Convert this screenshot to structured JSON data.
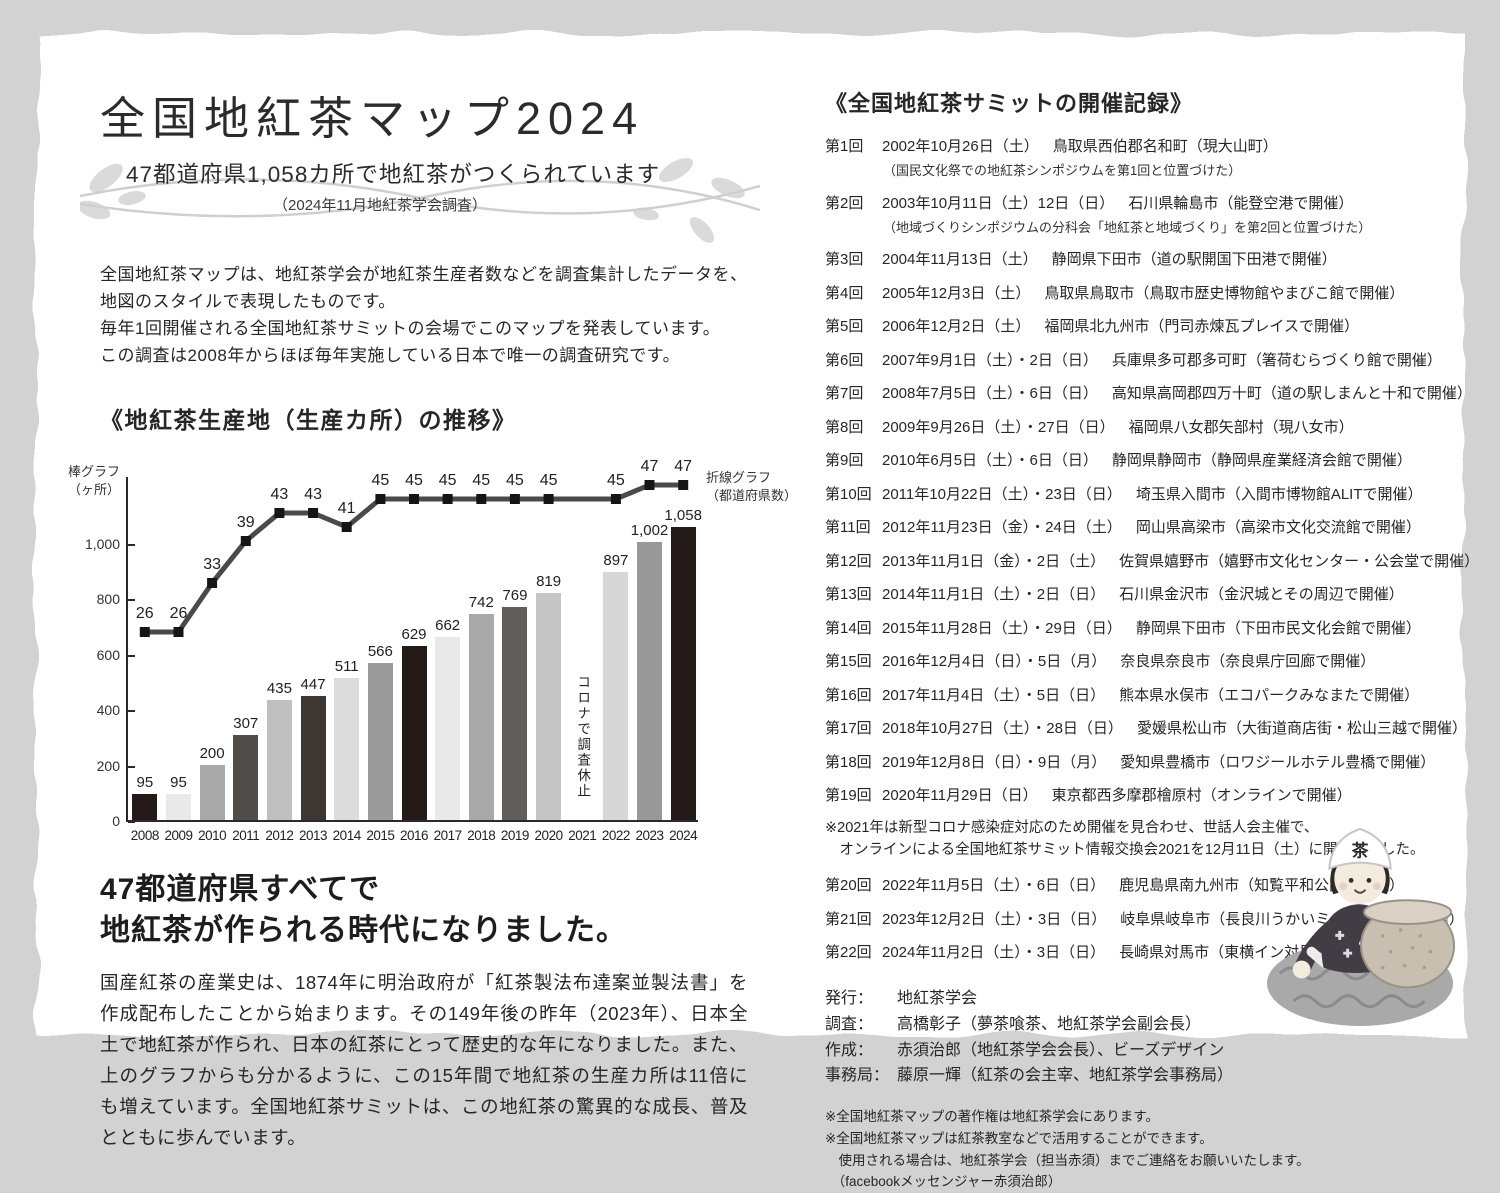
{
  "page": {
    "title": "全国地紅茶マップ2024",
    "subtitle": "47都道府県1,058カ所で地紅茶がつくられています",
    "survey_note": "（2024年11月地紅茶学会調査）",
    "intro_lines": [
      "全国地紅茶マップは、地紅茶学会が地紅茶生産者数などを調査集計したデータを、",
      "地図のスタイルで表現したものです。",
      "毎年1回開催される全国地紅茶サミットの会場でこのマップを発表しています。",
      "この調査は2008年からほぼ毎年実施している日本で唯一の調査研究です。"
    ]
  },
  "chart_data": {
    "type": "bar+line",
    "title": "《地紅茶生産地（生産カ所）の推移》",
    "bar_axis_label_lines": [
      "棒グラフ",
      "（ヶ所）"
    ],
    "line_legend_lines": [
      "折線グラフ",
      "（都道府県数）"
    ],
    "categories": [
      "2008",
      "2009",
      "2010",
      "2011",
      "2012",
      "2013",
      "2014",
      "2015",
      "2016",
      "2017",
      "2018",
      "2019",
      "2020",
      "2021",
      "2022",
      "2023",
      "2024"
    ],
    "series": [
      {
        "name": "生産カ所(棒グラフ)",
        "type": "bar",
        "values": [
          95,
          95,
          200,
          307,
          435,
          447,
          511,
          566,
          629,
          662,
          742,
          769,
          819,
          null,
          897,
          1002,
          1058
        ]
      },
      {
        "name": "都道府県数(折線グラフ)",
        "type": "line",
        "values": [
          26,
          26,
          33,
          39,
          43,
          43,
          41,
          45,
          45,
          45,
          45,
          45,
          45,
          null,
          45,
          47,
          47
        ]
      }
    ],
    "bar_colors": [
      "#241b18",
      "#e9e9e9",
      "#a9a9a9",
      "#514d4b",
      "#bfbfbf",
      "#3d3734",
      "#dcdcdc",
      "#9b9b9b",
      "#241b18",
      "#e9e9e9",
      "#a9a9a9",
      "#615d5b",
      "#c5c5c5",
      null,
      "#d7d7d7",
      "#989898",
      "#241b18"
    ],
    "missing_label": "コロナで調査休止",
    "y_ticks": [
      0,
      200,
      400,
      600,
      800,
      1000
    ],
    "bar_ylim": [
      0,
      1100
    ],
    "line_ylim": [
      0,
      48
    ],
    "grid": false,
    "legend_position": "top-right",
    "line_color": "#4a4a4a",
    "marker_color": "#151515"
  },
  "highlight": {
    "line1": "47都道府県すべてで",
    "line2": "地紅茶が作られる時代になりました。"
  },
  "history_paragraph": "国産紅茶の産業史は、1874年に明治政府が「紅茶製法布達案並製法書」を作成配布したことから始まります。その149年後の昨年（2023年）、日本全土で地紅茶が作られ、日本の紅茶にとって歴史的な年になりました。また、上のグラフからも分かるように、この15年間で地紅茶の生産カ所は11倍にも増えています。全国地紅茶サミットは、この地紅茶の驚異的な成長、普及とともに歩んでいます。",
  "summit": {
    "title": "《全国地紅茶サミットの開催記録》",
    "entries": [
      {
        "no": "第1回",
        "date": "2002年10月26日（土）",
        "location": "鳥取県西伯郡名和町（現大山町）",
        "note": "（国民文化祭での地紅茶シンポジウムを第1回と位置づけた）"
      },
      {
        "no": "第2回",
        "date": "2003年10月11日（土）12日（日）",
        "location": "石川県輪島市（能登空港で開催）",
        "note": "（地域づくりシンポジウムの分科会「地紅茶と地域づくり」を第2回と位置づけた）"
      },
      {
        "no": "第3回",
        "date": "2004年11月13日（土）",
        "location": "静岡県下田市（道の駅開国下田港で開催）"
      },
      {
        "no": "第4回",
        "date": "2005年12月3日（土）",
        "location": "鳥取県鳥取市（鳥取市歴史博物館やまびこ館で開催）"
      },
      {
        "no": "第5回",
        "date": "2006年12月2日（土）",
        "location": "福岡県北九州市（門司赤煉瓦プレイスで開催）"
      },
      {
        "no": "第6回",
        "date": "2007年9月1日（土）・2日（日）",
        "location": "兵庫県多可郡多可町（箸荷むらづくり館で開催）"
      },
      {
        "no": "第7回",
        "date": "2008年7月5日（土）・6日（日）",
        "location": "高知県高岡郡四万十町（道の駅しまんと十和で開催）"
      },
      {
        "no": "第8回",
        "date": "2009年9月26日（土）・27日（日）",
        "location": "福岡県八女郡矢部村（現八女市）"
      },
      {
        "no": "第9回",
        "date": "2010年6月5日（土）・6日（日）",
        "location": "静岡県静岡市（静岡県産業経済会館で開催）"
      },
      {
        "no": "第10回",
        "date": "2011年10月22日（土）・23日（日）",
        "location": "埼玉県入間市（入間市博物館ALITで開催）"
      },
      {
        "no": "第11回",
        "date": "2012年11月23日（金）・24日（土）",
        "location": "岡山県高梁市（高梁市文化交流館で開催）"
      },
      {
        "no": "第12回",
        "date": "2013年11月1日（金）・2日（土）",
        "location": "佐賀県嬉野市（嬉野市文化センター・公会堂で開催）"
      },
      {
        "no": "第13回",
        "date": "2014年11月1日（土）・2日（日）",
        "location": "石川県金沢市（金沢城とその周辺で開催）"
      },
      {
        "no": "第14回",
        "date": "2015年11月28日（土）・29日（日）",
        "location": "静岡県下田市（下田市民文化会館で開催）"
      },
      {
        "no": "第15回",
        "date": "2016年12月4日（日）・5日（月）",
        "location": "奈良県奈良市（奈良県庁回廊で開催）"
      },
      {
        "no": "第16回",
        "date": "2017年11月4日（土）・5日（日）",
        "location": "熊本県水俣市（エコパークみなまたで開催）"
      },
      {
        "no": "第17回",
        "date": "2018年10月27日（土）・28日（日）",
        "location": "愛媛県松山市（大街道商店街・松山三越で開催）"
      },
      {
        "no": "第18回",
        "date": "2019年12月8日（日）・9日（月）",
        "location": "愛知県豊橋市（ロワジールホテル豊橋で開催）"
      },
      {
        "no": "第19回",
        "date": "2020年11月29日（日）",
        "location": "東京都西多摩郡檜原村（オンラインで開催）"
      },
      {
        "covid_note": [
          "※2021年は新型コロナ感染症対応のため開催を見合わせ、世話人会主催で、",
          "　オンラインによる全国地紅茶サミット情報交換会2021を12月11日（土）に開催しました。"
        ]
      },
      {
        "no": "第20回",
        "date": "2022年11月5日（土）・6日（日）",
        "location": "鹿児島県南九州市（知覧平和公園で開催）"
      },
      {
        "no": "第21回",
        "date": "2023年12月2日（土）・3日（日）",
        "location": "岐阜県岐阜市（長良川うかいミュージアムで開催）"
      },
      {
        "no": "第22回",
        "date": "2024年11月2日（土）・3日（日）",
        "location": "長崎県対馬市（東横イン対馬比田勝で開催）"
      }
    ]
  },
  "credits": [
    {
      "label": "発行：",
      "value": "地紅茶学会"
    },
    {
      "label": "調査：",
      "value": "高橋彰子（夢茶喰茶、地紅茶学会副会長）"
    },
    {
      "label": "作成：",
      "value": "赤須治郎（地紅茶学会会長）、ビーズデザイン"
    },
    {
      "label": "事務局：",
      "value": "藤原一輝（紅茶の会主宰、地紅茶学会事務局）"
    }
  ],
  "footnotes": [
    "※全国地紅茶マップの著作権は地紅茶学会にあります。",
    "※全国地紅茶マップは紅茶教室などで活用することができます。",
    "　使用される場合は、地紅茶学会（担当赤須）までご連絡をお願いいたします。",
    "　（facebookメッセンジャー赤須治郎）"
  ],
  "mascot": {
    "hat_kanji": "茶"
  }
}
